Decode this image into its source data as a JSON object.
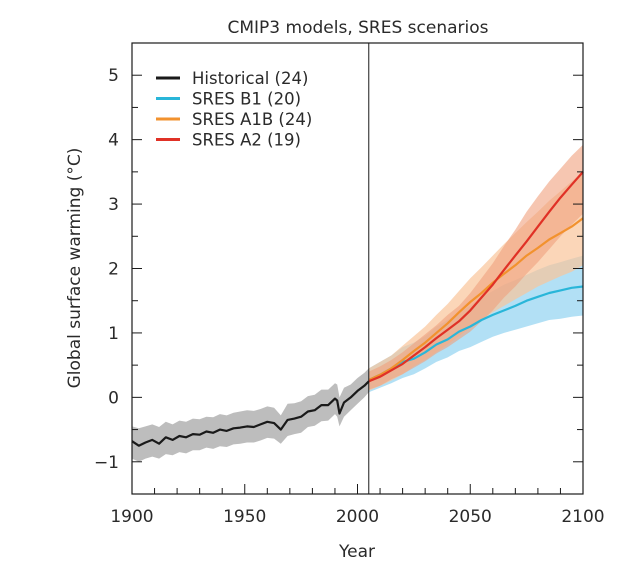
{
  "chart_data": {
    "type": "line",
    "title": "CMIP3 models, SRES scenarios",
    "xlabel": "Year",
    "ylabel": "Global surface warming (°C)",
    "xlim": [
      1900,
      2100
    ],
    "ylim": [
      -1.5,
      5.5
    ],
    "xticks": [
      1900,
      1950,
      2000,
      2050,
      2100
    ],
    "xticklabels": [
      "1900",
      "1950",
      "2000",
      "2050",
      "2100"
    ],
    "yticks": [
      -1,
      0,
      1,
      2,
      3,
      4,
      5
    ],
    "yticklabels": [
      "−1",
      "0",
      "1",
      "2",
      "3",
      "4",
      "5"
    ],
    "vertical_marker_year": 2005,
    "grid": false,
    "legend_position": "top-left",
    "series": [
      {
        "name": "Historical (24)",
        "color": "#1a1a1a",
        "band_color": "#bdbdbd",
        "x": [
          1900,
          1903,
          1906,
          1909,
          1912,
          1915,
          1918,
          1921,
          1924,
          1927,
          1930,
          1933,
          1936,
          1939,
          1942,
          1945,
          1948,
          1951,
          1954,
          1957,
          1960,
          1963,
          1966,
          1969,
          1972,
          1975,
          1978,
          1981,
          1984,
          1987,
          1990,
          1991,
          1992,
          1994,
          1997,
          2000,
          2003,
          2005
        ],
        "values": [
          -0.68,
          -0.75,
          -0.7,
          -0.66,
          -0.72,
          -0.62,
          -0.66,
          -0.6,
          -0.62,
          -0.57,
          -0.58,
          -0.53,
          -0.55,
          -0.5,
          -0.52,
          -0.48,
          -0.47,
          -0.45,
          -0.46,
          -0.42,
          -0.38,
          -0.4,
          -0.5,
          -0.35,
          -0.33,
          -0.3,
          -0.22,
          -0.2,
          -0.12,
          -0.12,
          -0.02,
          -0.05,
          -0.25,
          -0.08,
          0.0,
          0.1,
          0.18,
          0.25
        ],
        "lower": [
          -0.95,
          -1.0,
          -0.95,
          -0.92,
          -0.95,
          -0.88,
          -0.9,
          -0.85,
          -0.87,
          -0.82,
          -0.82,
          -0.78,
          -0.8,
          -0.76,
          -0.77,
          -0.73,
          -0.72,
          -0.7,
          -0.7,
          -0.67,
          -0.63,
          -0.64,
          -0.72,
          -0.6,
          -0.57,
          -0.55,
          -0.46,
          -0.44,
          -0.37,
          -0.36,
          -0.26,
          -0.3,
          -0.45,
          -0.3,
          -0.2,
          -0.1,
          0.0,
          0.08
        ],
        "upper": [
          -0.45,
          -0.48,
          -0.45,
          -0.42,
          -0.46,
          -0.38,
          -0.42,
          -0.36,
          -0.38,
          -0.33,
          -0.34,
          -0.3,
          -0.31,
          -0.26,
          -0.28,
          -0.24,
          -0.22,
          -0.2,
          -0.21,
          -0.18,
          -0.14,
          -0.16,
          -0.28,
          -0.1,
          -0.09,
          -0.06,
          0.02,
          0.04,
          0.12,
          0.12,
          0.22,
          0.2,
          0.0,
          0.15,
          0.2,
          0.3,
          0.38,
          0.45
        ]
      },
      {
        "name": "SRES B1 (20)",
        "color": "#29b6d9",
        "band_color": "#9fd8f3",
        "x": [
          2005,
          2010,
          2015,
          2020,
          2025,
          2030,
          2035,
          2040,
          2045,
          2050,
          2055,
          2060,
          2065,
          2070,
          2075,
          2080,
          2085,
          2090,
          2095,
          2100
        ],
        "values": [
          0.27,
          0.35,
          0.45,
          0.55,
          0.6,
          0.7,
          0.82,
          0.9,
          1.02,
          1.1,
          1.2,
          1.28,
          1.35,
          1.42,
          1.5,
          1.56,
          1.62,
          1.66,
          1.7,
          1.72
        ],
        "lower": [
          0.08,
          0.15,
          0.22,
          0.3,
          0.36,
          0.45,
          0.55,
          0.62,
          0.72,
          0.78,
          0.86,
          0.94,
          1.0,
          1.05,
          1.1,
          1.15,
          1.2,
          1.22,
          1.25,
          1.27
        ],
        "upper": [
          0.45,
          0.55,
          0.65,
          0.78,
          0.85,
          0.95,
          1.1,
          1.2,
          1.32,
          1.42,
          1.55,
          1.65,
          1.75,
          1.82,
          1.9,
          1.98,
          2.05,
          2.1,
          2.15,
          2.2
        ]
      },
      {
        "name": "SRES A1B (24)",
        "color": "#f2922e",
        "band_color": "#f9c59a",
        "x": [
          2005,
          2010,
          2015,
          2020,
          2025,
          2030,
          2035,
          2040,
          2045,
          2050,
          2055,
          2060,
          2065,
          2070,
          2075,
          2080,
          2085,
          2090,
          2095,
          2100
        ],
        "values": [
          0.27,
          0.35,
          0.45,
          0.58,
          0.72,
          0.85,
          1.0,
          1.15,
          1.32,
          1.48,
          1.62,
          1.78,
          1.92,
          2.05,
          2.2,
          2.32,
          2.45,
          2.55,
          2.65,
          2.78
        ],
        "lower": [
          0.1,
          0.18,
          0.26,
          0.36,
          0.48,
          0.58,
          0.7,
          0.82,
          0.95,
          1.08,
          1.2,
          1.32,
          1.42,
          1.52,
          1.62,
          1.72,
          1.8,
          1.88,
          1.95,
          2.05
        ],
        "upper": [
          0.45,
          0.55,
          0.65,
          0.8,
          0.95,
          1.1,
          1.28,
          1.45,
          1.65,
          1.85,
          2.02,
          2.2,
          2.38,
          2.55,
          2.72,
          2.88,
          3.05,
          3.2,
          3.35,
          3.5
        ]
      },
      {
        "name": "SRES A2 (19)",
        "color": "#e03126",
        "band_color": "#f0a07d",
        "x": [
          2005,
          2010,
          2015,
          2020,
          2025,
          2030,
          2035,
          2040,
          2045,
          2050,
          2055,
          2060,
          2065,
          2070,
          2075,
          2080,
          2085,
          2090,
          2095,
          2100
        ],
        "values": [
          0.25,
          0.32,
          0.42,
          0.52,
          0.65,
          0.78,
          0.92,
          1.05,
          1.18,
          1.35,
          1.55,
          1.75,
          1.98,
          2.2,
          2.42,
          2.65,
          2.88,
          3.1,
          3.3,
          3.5
        ],
        "lower": [
          0.12,
          0.18,
          0.28,
          0.36,
          0.46,
          0.56,
          0.68,
          0.78,
          0.9,
          1.02,
          1.18,
          1.35,
          1.55,
          1.72,
          1.92,
          2.1,
          2.3,
          2.5,
          2.68,
          2.85
        ],
        "upper": [
          0.4,
          0.48,
          0.58,
          0.7,
          0.84,
          0.98,
          1.12,
          1.28,
          1.42,
          1.62,
          1.85,
          2.08,
          2.35,
          2.6,
          2.88,
          3.12,
          3.35,
          3.55,
          3.75,
          3.92
        ]
      }
    ]
  }
}
